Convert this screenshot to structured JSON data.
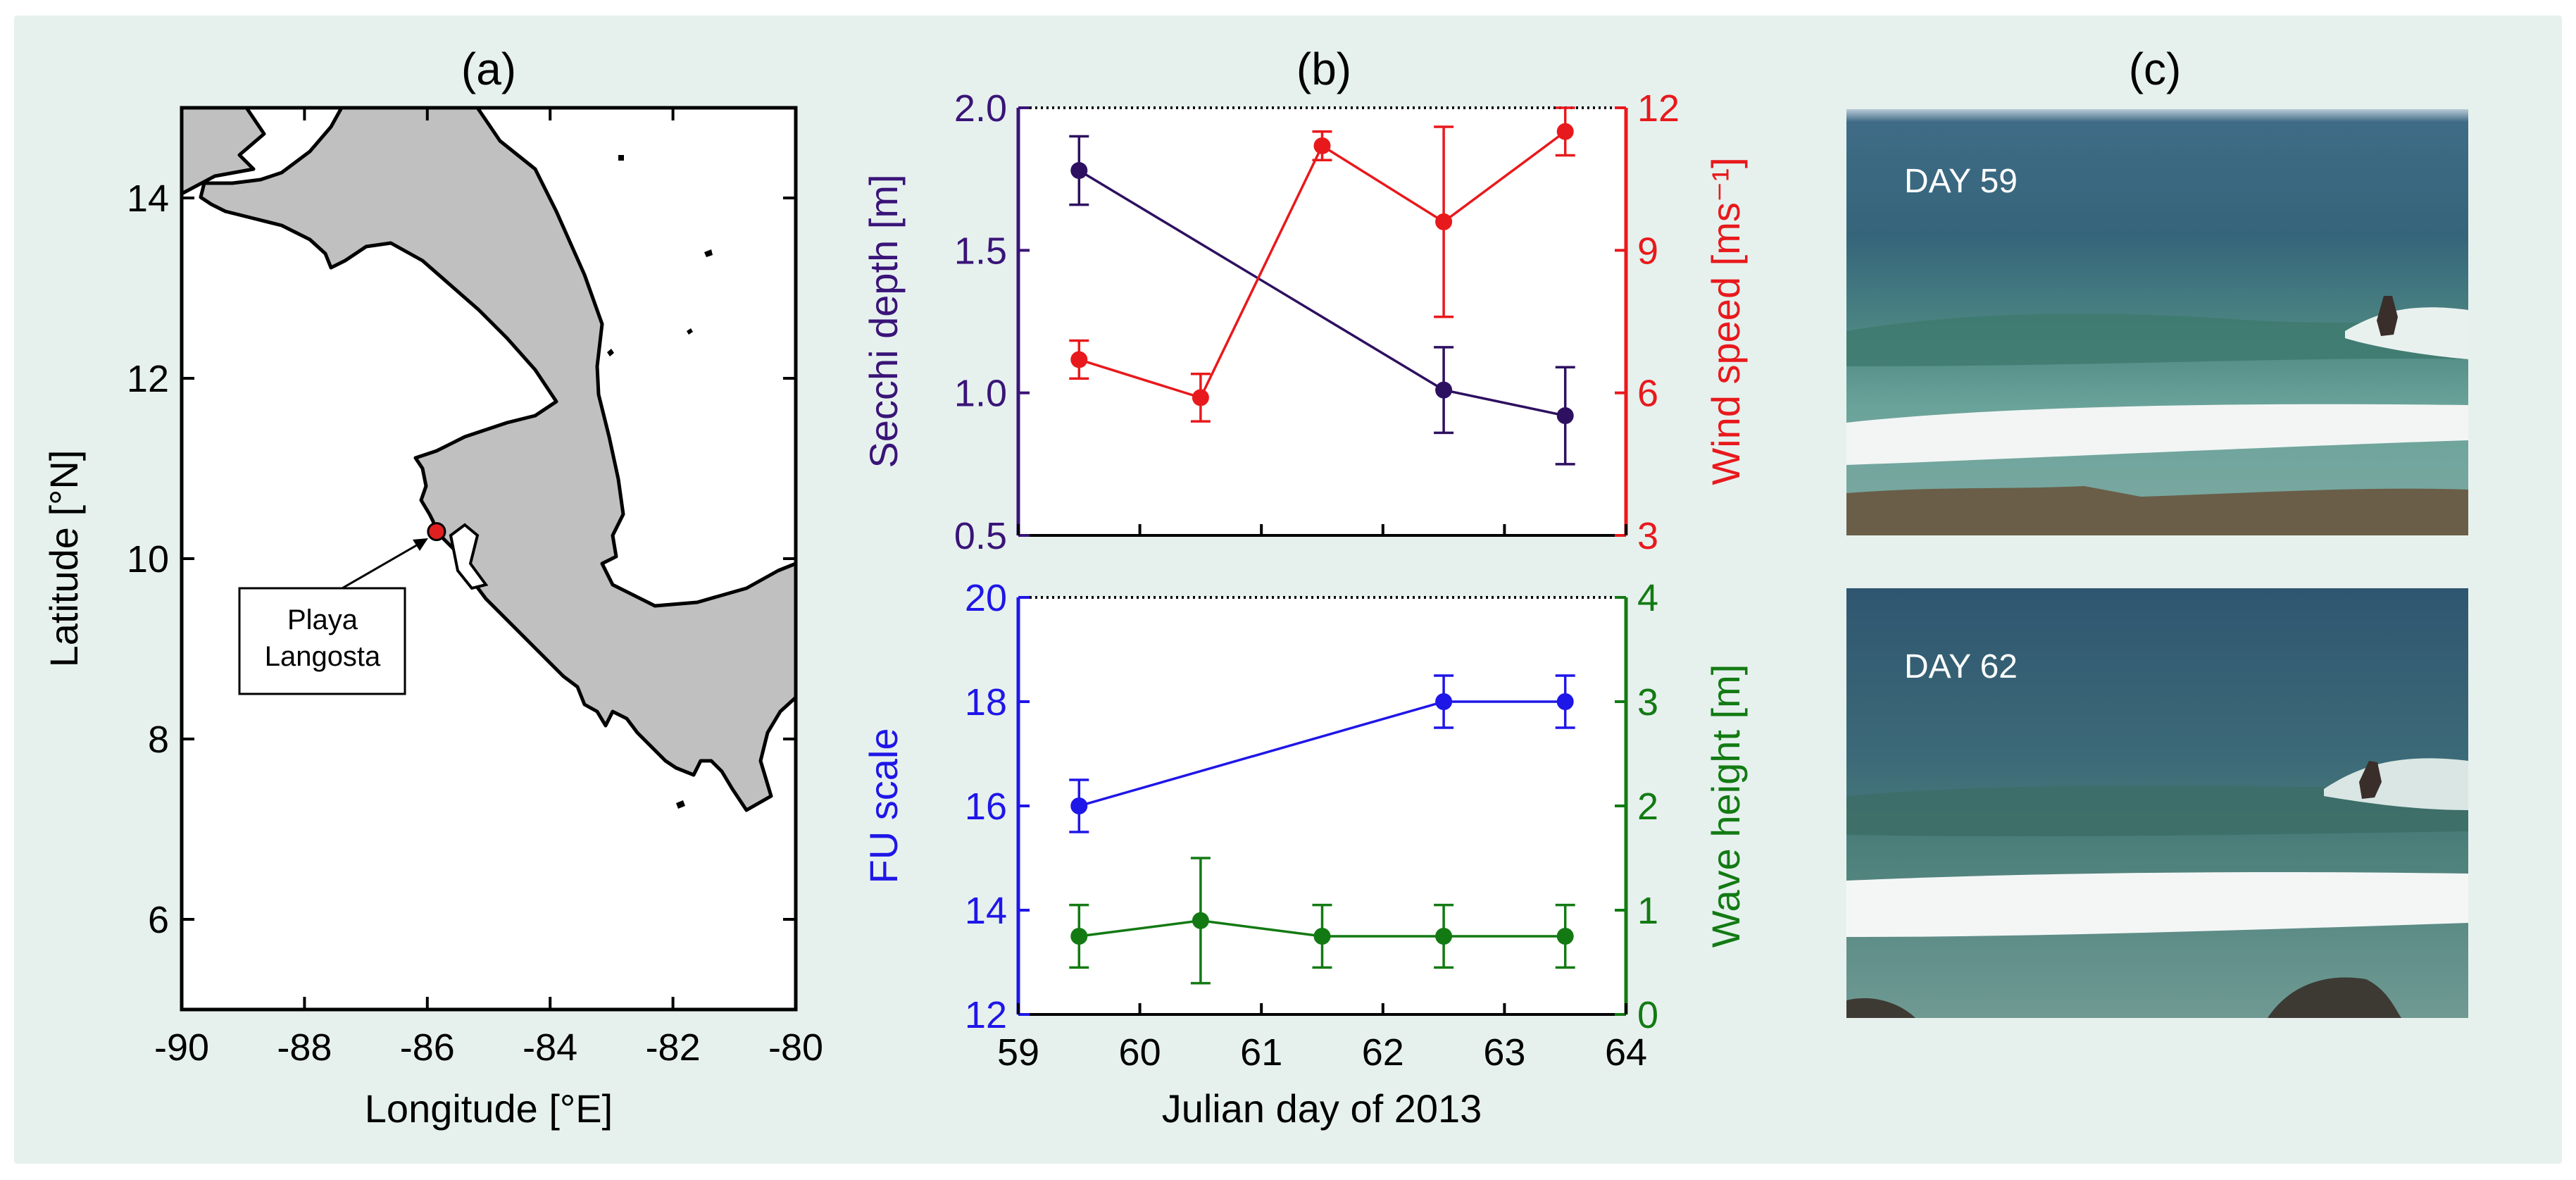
{
  "figure": {
    "background": "#e6f1ee"
  },
  "panel_a": {
    "label": "(a)",
    "xlabel": "Longitude [°E]",
    "ylabel": "Latitude [°N]",
    "xticks": [
      "-90",
      "-88",
      "-86",
      "-84",
      "-82",
      "-80"
    ],
    "yticks": [
      "6",
      "8",
      "10",
      "12",
      "14"
    ],
    "xlim": [
      -90,
      -80
    ],
    "ylim": [
      5,
      15
    ],
    "land_color": "#c0c0c0",
    "site": {
      "name_line1": "Playa",
      "name_line2": "Langosta",
      "lon": -85.85,
      "lat": 10.3,
      "color": "#e02020"
    }
  },
  "panel_b_label": "(b)",
  "panel_c": {
    "label": "(c)",
    "photo_top_label": "DAY 59",
    "photo_bottom_label": "DAY 62"
  },
  "chart_data": [
    {
      "type": "line",
      "title": "",
      "xlabel": "",
      "xlim": [
        59,
        64
      ],
      "left_axis": {
        "label": "Secchi depth [m]",
        "ylim": [
          0.5,
          2.0
        ],
        "ticks": [
          "0.5",
          "1.0",
          "1.5",
          "2.0"
        ],
        "color": "#3a1478"
      },
      "right_axis": {
        "label": "Wind speed [ms⁻¹]",
        "ylim": [
          3,
          12
        ],
        "ticks": [
          "3",
          "6",
          "9",
          "12"
        ],
        "color": "#e8191c"
      },
      "series": [
        {
          "name": "Secchi depth",
          "axis": "left",
          "color": "#2e1060",
          "x": [
            59.5,
            62.5,
            63.5
          ],
          "y": [
            1.78,
            1.01,
            0.92
          ],
          "err": [
            0.12,
            0.15,
            0.17
          ]
        },
        {
          "name": "Wind speed",
          "axis": "right",
          "color": "#e8191c",
          "x": [
            59.5,
            60.5,
            61.5,
            62.5,
            63.5
          ],
          "y": [
            6.7,
            5.9,
            11.2,
            9.6,
            11.5
          ],
          "err": [
            0.4,
            0.5,
            0.3,
            2.0,
            0.5
          ]
        }
      ]
    },
    {
      "type": "line",
      "title": "",
      "xlabel": "Julian day of 2013",
      "xlim": [
        59,
        64
      ],
      "xticks": [
        "59",
        "60",
        "61",
        "62",
        "63",
        "64"
      ],
      "left_axis": {
        "label": "FU scale",
        "ylim": [
          12,
          20
        ],
        "ticks": [
          "12",
          "14",
          "16",
          "18",
          "20"
        ],
        "color": "#1f16e8"
      },
      "right_axis": {
        "label": "Wave height [m]",
        "ylim": [
          0,
          4
        ],
        "ticks": [
          "0",
          "1",
          "2",
          "3",
          "4"
        ],
        "color": "#137a13"
      },
      "series": [
        {
          "name": "FU scale",
          "axis": "left",
          "color": "#1f16e8",
          "x": [
            59.5,
            62.5,
            63.5
          ],
          "y": [
            16,
            18,
            18
          ],
          "err": [
            0.5,
            0.5,
            0.5
          ]
        },
        {
          "name": "Wave height",
          "axis": "right",
          "color": "#137a13",
          "x": [
            59.5,
            60.5,
            61.5,
            62.5,
            63.5
          ],
          "y": [
            0.75,
            0.9,
            0.75,
            0.75,
            0.75
          ],
          "err": [
            0.3,
            0.6,
            0.3,
            0.3,
            0.3
          ]
        }
      ]
    }
  ]
}
